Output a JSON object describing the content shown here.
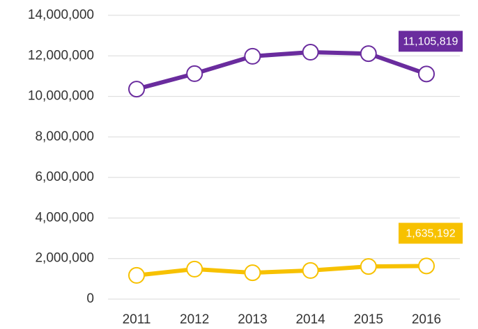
{
  "chart_data": {
    "type": "line",
    "categories": [
      "2011",
      "2012",
      "2013",
      "2014",
      "2015",
      "2016"
    ],
    "series": [
      {
        "color": "#6a2c9e",
        "values": [
          10360000,
          11120000,
          11980000,
          12180000,
          12110000,
          11105819
        ],
        "value_labels": [
          null,
          null,
          null,
          null,
          null,
          "11,105,819"
        ]
      },
      {
        "color": "#f7c100",
        "values": [
          1170000,
          1480000,
          1300000,
          1410000,
          1610000,
          1635192
        ],
        "value_labels": [
          null,
          null,
          null,
          null,
          null,
          "1,635,192"
        ]
      }
    ],
    "ylim": [
      0,
      14000000
    ],
    "yticks": [
      0,
      {
        "value": 2000000,
        "label": "2,000,000"
      },
      {
        "value": 4000000,
        "label": "4,000,000"
      },
      {
        "value": 6000000,
        "label": "6,000,000"
      },
      {
        "value": 8000000,
        "label": "8,000,000"
      },
      {
        "value": 10000000,
        "label": "10,000,000"
      },
      {
        "value": 12000000,
        "label": "12,000,000"
      },
      {
        "value": 14000000,
        "label": "14,000,000"
      }
    ],
    "grid": true
  }
}
